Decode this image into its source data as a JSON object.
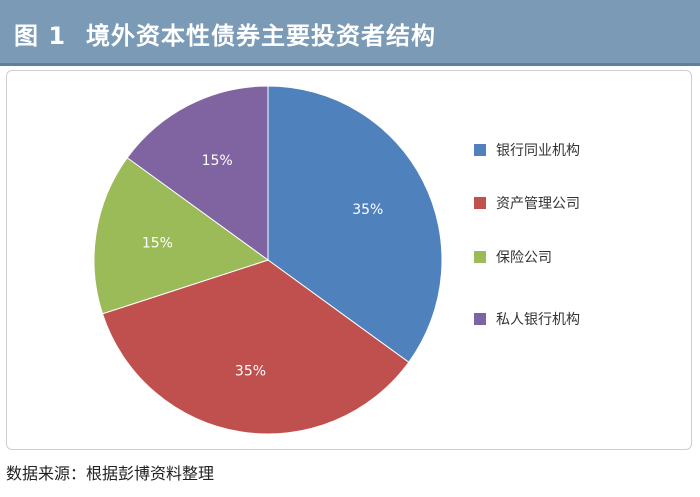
{
  "header": {
    "figure_label": "图 1",
    "title": "境外资本性债券主要投资者结构"
  },
  "source": "数据来源：根据彭博资料整理",
  "chart_data": {
    "type": "pie",
    "title": "境外资本性债券主要投资者结构",
    "categories": [
      "银行同业机构",
      "资产管理公司",
      "保险公司",
      "私人银行机构"
    ],
    "values": [
      35,
      35,
      15,
      15
    ],
    "data_labels": [
      "35%",
      "35%",
      "15%",
      "15%"
    ],
    "colors": [
      "#4f81bd",
      "#c0504d",
      "#9bbb59",
      "#8064a2"
    ],
    "legend_position": "right"
  }
}
